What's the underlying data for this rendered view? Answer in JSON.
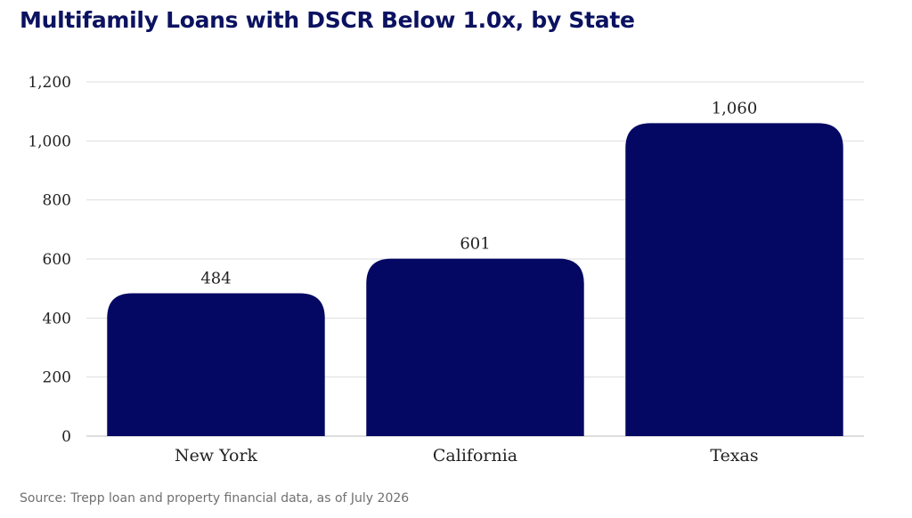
{
  "title": "Multifamily Loans with DSCR Below 1.0x, by State",
  "source": "Source: Trepp loan and property financial data, as of July 2026",
  "colors": {
    "bar": "#050863",
    "title": "#0b1260",
    "grid": "#dddddd",
    "axis_text": "#222222"
  },
  "chart_data": {
    "type": "bar",
    "title": "Multifamily Loans with DSCR Below 1.0x, by State",
    "categories": [
      "New York",
      "California",
      "Texas"
    ],
    "values": [
      484,
      601,
      1060
    ],
    "value_labels": [
      "484",
      "601",
      "1,060"
    ],
    "y_ticks": [
      0,
      200,
      400,
      600,
      800,
      1000,
      1200
    ],
    "y_tick_labels": [
      "0",
      "200",
      "400",
      "600",
      "800",
      "1,000",
      "1,200"
    ],
    "ylim": [
      0,
      1200
    ],
    "xlabel": "",
    "ylabel": "",
    "grid": true
  }
}
